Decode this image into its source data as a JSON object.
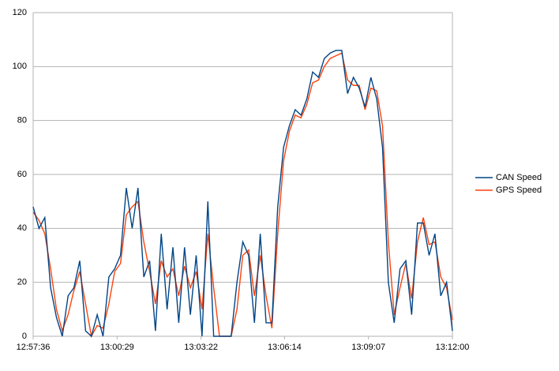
{
  "chart_data": {
    "type": "line",
    "x": [
      46656,
      46668,
      46680,
      46692,
      46704,
      46716,
      46728,
      46740,
      46752,
      46764,
      46776,
      46788,
      46800,
      46812,
      46824,
      46836,
      46848,
      46860,
      46872,
      46884,
      46896,
      46908,
      46920,
      46932,
      46944,
      46956,
      46968,
      46980,
      46992,
      47004,
      47016,
      47028,
      47040,
      47052,
      47064,
      47076,
      47088,
      47100,
      47112,
      47124,
      47136,
      47148,
      47160,
      47172,
      47184,
      47196,
      47208,
      47220,
      47232,
      47244,
      47256,
      47268,
      47280,
      47292,
      47304,
      47316,
      47328,
      47340,
      47352,
      47364,
      47376,
      47388,
      47400,
      47412,
      47424,
      47436,
      47448,
      47460,
      47472,
      47484,
      47496,
      47508,
      47520
    ],
    "series": [
      {
        "name": "CAN Speed",
        "color": "#004586",
        "values": [
          48,
          40,
          44,
          18,
          7,
          0,
          15,
          18,
          28,
          2,
          0,
          8,
          0,
          22,
          25,
          30,
          55,
          40,
          55,
          22,
          28,
          2,
          38,
          10,
          33,
          5,
          33,
          8,
          30,
          0,
          50,
          0,
          0,
          0,
          0,
          20,
          35,
          30,
          5,
          38,
          5,
          5,
          48,
          70,
          78,
          84,
          82,
          88,
          98,
          96,
          103,
          105,
          106,
          106,
          90,
          96,
          92,
          85,
          96,
          88,
          70,
          20,
          5,
          25,
          28,
          8,
          42,
          42,
          30,
          38,
          15,
          20,
          2
        ]
      },
      {
        "name": "GPS Speed",
        "color": "#ff420e",
        "values": [
          46,
          43,
          38,
          25,
          10,
          2,
          8,
          17,
          24,
          12,
          0,
          4,
          3,
          12,
          24,
          27,
          45,
          48,
          50,
          35,
          24,
          12,
          28,
          22,
          25,
          15,
          26,
          18,
          24,
          10,
          38,
          18,
          0,
          0,
          0,
          10,
          30,
          32,
          15,
          30,
          15,
          3,
          38,
          65,
          76,
          82,
          81,
          86,
          94,
          95,
          100,
          103,
          104,
          105,
          95,
          93,
          93,
          84,
          92,
          91,
          78,
          35,
          8,
          18,
          27,
          14,
          35,
          44,
          34,
          35,
          22,
          18,
          6
        ]
      }
    ],
    "xlim": [
      46656,
      47520
    ],
    "xticks": [
      {
        "value": 46656,
        "label": "12:57:36"
      },
      {
        "value": 46829,
        "label": "13:00:29"
      },
      {
        "value": 47002,
        "label": "13:03:22"
      },
      {
        "value": 47174,
        "label": "13:06:14"
      },
      {
        "value": 47347,
        "label": "13:09:07"
      },
      {
        "value": 47520,
        "label": "13:12:00"
      }
    ],
    "ylim": [
      0,
      120
    ],
    "yticks": [
      0,
      20,
      40,
      60,
      80,
      100,
      120
    ],
    "grid": true,
    "legend": "right"
  }
}
